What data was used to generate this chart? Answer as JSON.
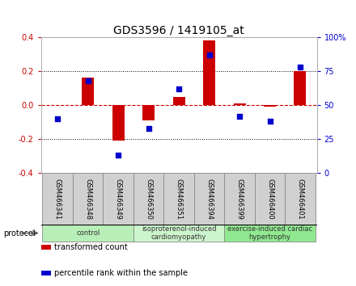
{
  "title": "GDS3596 / 1419105_at",
  "samples": [
    "GSM466341",
    "GSM466348",
    "GSM466349",
    "GSM466350",
    "GSM466351",
    "GSM466394",
    "GSM466399",
    "GSM466400",
    "GSM466401"
  ],
  "transformed_count": [
    0.0,
    0.16,
    -0.21,
    -0.09,
    0.05,
    0.38,
    0.01,
    -0.01,
    0.2
  ],
  "percentile_rank": [
    40,
    68,
    13,
    33,
    62,
    87,
    42,
    38,
    78
  ],
  "ylim_left": [
    -0.4,
    0.4
  ],
  "ylim_right": [
    0,
    100
  ],
  "yticks_left": [
    -0.4,
    -0.2,
    0.0,
    0.2,
    0.4
  ],
  "yticks_right": [
    0,
    25,
    50,
    75,
    100
  ],
  "ytick_labels_right": [
    "0",
    "25",
    "50",
    "75",
    "100%"
  ],
  "bar_color": "#cc0000",
  "dot_color": "#0000cc",
  "zero_line_color": "#cc0000",
  "bg_color": "#ffffff",
  "sample_box_color": "#d0d0d0",
  "group_colors": [
    "#b8eeb8",
    "#cdf5cd",
    "#90e890"
  ],
  "group_ranges": [
    [
      0,
      2
    ],
    [
      3,
      5
    ],
    [
      6,
      8
    ]
  ],
  "group_labels": [
    "control",
    "isoproterenol-induced\ncardiomyopathy",
    "exercise-induced cardiac\nhypertrophy"
  ],
  "legend_items": [
    {
      "label": "transformed count",
      "color": "#cc0000"
    },
    {
      "label": "percentile rank within the sample",
      "color": "#0000cc"
    }
  ],
  "protocol_label": "protocol",
  "title_fontsize": 10,
  "tick_fontsize": 7,
  "sample_fontsize": 6,
  "group_fontsize": 6,
  "legend_fontsize": 7
}
